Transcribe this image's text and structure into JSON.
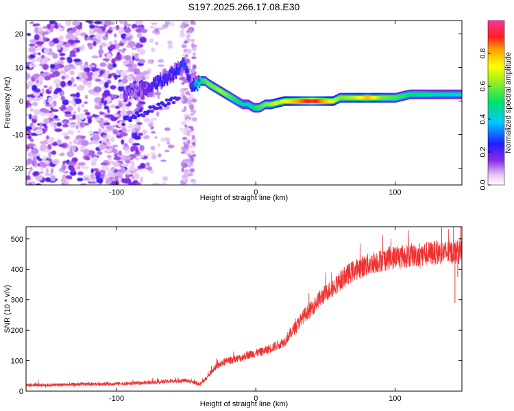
{
  "title": "S197.2025.266.17.08.E30",
  "chart_data": [
    {
      "type": "heatmap",
      "name": "spectrogram",
      "xlabel": "Height of straight line (km)",
      "ylabel": "Frequency (Hz)",
      "xlim": [
        -165,
        148
      ],
      "ylim": [
        -25,
        24
      ],
      "xticks": [
        -100,
        0,
        100
      ],
      "yticks": [
        -20,
        -10,
        0,
        10,
        20
      ],
      "ridge": {
        "x": [
          -95,
          -88,
          -82,
          -76,
          -70,
          -64,
          -58,
          -52,
          -47,
          -43,
          -40,
          -37,
          -34,
          -30,
          -26,
          -22,
          -18,
          -14,
          -10,
          -6,
          -2,
          2,
          6,
          10,
          20,
          40,
          55,
          60,
          70,
          80,
          90,
          100,
          110,
          120,
          130,
          148
        ],
        "y": [
          2,
          3,
          4,
          4,
          6,
          7,
          9,
          11,
          5,
          5,
          6,
          6,
          5,
          4,
          3,
          2,
          1,
          0,
          -1,
          -1,
          -2,
          -2,
          -1,
          -1,
          0,
          0,
          0,
          1,
          1,
          1,
          1,
          1,
          2,
          2,
          2,
          2
        ],
        "amplitude": [
          0.15,
          0.1,
          0.15,
          0.2,
          0.25,
          0.2,
          0.25,
          0.3,
          0.2,
          0.4,
          0.5,
          0.55,
          0.6,
          0.6,
          0.65,
          0.6,
          0.55,
          0.5,
          0.45,
          0.45,
          0.5,
          0.55,
          0.6,
          0.65,
          0.7,
          0.95,
          0.7,
          0.6,
          0.65,
          0.8,
          0.6,
          0.55,
          0.5,
          0.5,
          0.45,
          0.45
        ]
      },
      "colorbar": {
        "label": "Normalized spectral amplitude",
        "range": [
          0,
          1
        ],
        "ticks": [
          "0.0",
          "0.2",
          "0.4",
          "0.6",
          "0.8"
        ]
      }
    },
    {
      "type": "line",
      "name": "snr",
      "xlabel": "Height of straight line (km)",
      "ylabel": "SNR (10 * v/v)",
      "xlim": [
        -165,
        148
      ],
      "ylim": [
        0,
        540
      ],
      "xticks": [
        -100,
        0,
        100
      ],
      "yticks": [
        0,
        100,
        200,
        300,
        400,
        500
      ],
      "color": "#ee3333",
      "series": [
        {
          "name": "SNR",
          "x": [
            -165,
            -150,
            -130,
            -110,
            -90,
            -70,
            -60,
            -50,
            -45,
            -40,
            -35,
            -30,
            -25,
            -20,
            -15,
            -10,
            -5,
            0,
            5,
            10,
            15,
            20,
            25,
            30,
            35,
            40,
            45,
            50,
            55,
            60,
            65,
            70,
            75,
            80,
            90,
            100,
            110,
            120,
            130,
            140,
            148
          ],
          "y": [
            20,
            20,
            22,
            24,
            25,
            30,
            33,
            35,
            30,
            22,
            45,
            75,
            90,
            100,
            105,
            110,
            120,
            125,
            130,
            140,
            150,
            160,
            190,
            220,
            250,
            270,
            300,
            320,
            340,
            360,
            380,
            395,
            405,
            415,
            430,
            440,
            445,
            450,
            455,
            455,
            460
          ]
        }
      ]
    }
  ]
}
